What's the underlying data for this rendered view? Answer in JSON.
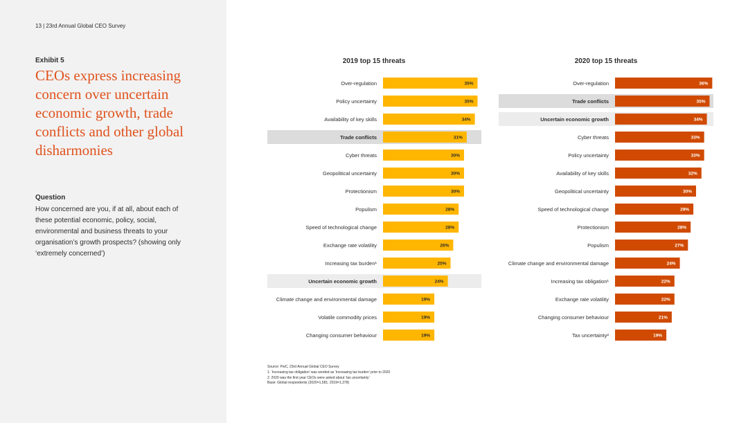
{
  "page_ref": "13  |  23rd Annual Global CEO Survey",
  "exhibit_label": "Exhibit 5",
  "headline": "CEOs express increasing concern over uncertain economic growth, trade conflicts and other global disharmonies",
  "question": {
    "label": "Question",
    "text": "How concerned are you, if at all, about each of these potential economic, policy, social, environmental and business threats to your organisation’s growth prospects? (showing only ‘extremely concerned’)"
  },
  "colors": {
    "bar_2019": "#ffb600",
    "bar_2020": "#d04a02",
    "highlight": "#dcdcdc",
    "highlight_light": "#ececec"
  },
  "chart_data": [
    {
      "type": "bar",
      "orientation": "horizontal",
      "title": "2019 top 15 threats",
      "categories": [
        "Over-regulation",
        "Policy uncertainty",
        "Availability of key skills",
        "Trade conflicts",
        "Cyber threats",
        "Geopolitical uncertainty",
        "Protectionism",
        "Populism",
        "Speed of technological change",
        "Exchange rate volatility",
        "Increasing tax burden¹",
        "Uncertain economic growth",
        "Climate change and environmental damage",
        "Volatile commodity prices",
        "Changing consumer behaviour"
      ],
      "values": [
        35,
        35,
        34,
        31,
        30,
        30,
        30,
        28,
        28,
        26,
        25,
        24,
        19,
        19,
        19
      ],
      "value_labels": [
        "35%",
        "35%",
        "34%",
        "31%",
        "30%",
        "30%",
        "30%",
        "28%",
        "28%",
        "26%",
        "25%",
        "24%",
        "19%",
        "19%",
        "19%"
      ],
      "highlighted": [
        "Trade conflicts",
        "Uncertain economic growth"
      ],
      "unit": "%"
    },
    {
      "type": "bar",
      "orientation": "horizontal",
      "title": "2020 top 15 threats",
      "categories": [
        "Over-regulation",
        "Trade conflicts",
        "Uncertain economic growth",
        "Cyber threats",
        "Policy uncertainty",
        "Availability of key skills",
        "Geopolitical uncertainty",
        "Speed of technological change",
        "Protectionism",
        "Populism",
        "Climate change and environmental damage",
        "Increasing tax obligation¹",
        "Exchange rate volatility",
        "Changing consumer behaviour",
        "Tax uncertainty²"
      ],
      "values": [
        36,
        35,
        34,
        33,
        33,
        32,
        30,
        29,
        28,
        27,
        24,
        22,
        22,
        21,
        19
      ],
      "value_labels": [
        "36%",
        "35%",
        "34%",
        "33%",
        "33%",
        "32%",
        "30%",
        "29%",
        "28%",
        "27%",
        "24%",
        "22%",
        "22%",
        "21%",
        "19%"
      ],
      "highlighted": [
        "Trade conflicts",
        "Uncertain economic growth"
      ],
      "unit": "%"
    }
  ],
  "source_notes": [
    "Source: PwC, 23rd Annual Global CEO Survey",
    "1. ‘Increasing tax obligation’ was worded as ‘Increasing tax burden’ prior to 2020",
    "2. 2020 was the first year CEOs were asked about ‘tax uncertainty’",
    "Base: Global respondents (2020=1,581; 2019=1,378)"
  ]
}
